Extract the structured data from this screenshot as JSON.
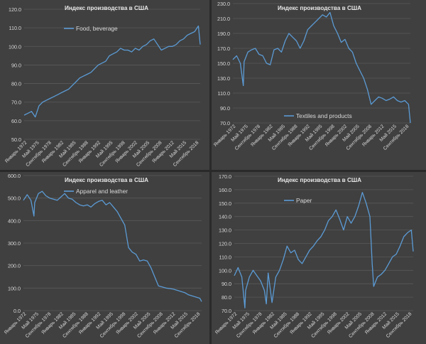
{
  "chart_data": [
    {
      "type": "line",
      "title": "Индекс производства в США",
      "legend": "Food, beverage",
      "ylim": [
        50,
        120
      ],
      "yticks": [
        "50.0",
        "60.0",
        "70.0",
        "80.0",
        "90.0",
        "100.0",
        "110.0",
        "120.0"
      ],
      "xticks": [
        "Январь 1972",
        "Май 1975",
        "Сентябрь 1978",
        "Январь 1982",
        "Май 1985",
        "Сентябрь 1988",
        "Январь 1992",
        "Май 1995",
        "Сентябрь 1998",
        "Январь 2002",
        "Май 2005",
        "Сентябрь 2008",
        "Январь 2012",
        "Май 2015",
        "Сентябрь 2018"
      ],
      "x": [
        1972,
        1973,
        1974,
        1975,
        1976,
        1977,
        1978,
        1979,
        1980,
        1981,
        1982,
        1983,
        1984,
        1985,
        1986,
        1987,
        1988,
        1989,
        1990,
        1991,
        1992,
        1993,
        1994,
        1995,
        1996,
        1997,
        1998,
        1999,
        2000,
        2001,
        2002,
        2003,
        2004,
        2005,
        2006,
        2007,
        2008,
        2009,
        2010,
        2011,
        2012,
        2013,
        2014,
        2015,
        2016,
        2017,
        2018,
        2019,
        2019.5
      ],
      "values": [
        63,
        64,
        65,
        62,
        68,
        70,
        71,
        72,
        73,
        74,
        75,
        76,
        77,
        79,
        81,
        83,
        84,
        85,
        86,
        88,
        90,
        91,
        92,
        95,
        96,
        97,
        99,
        98,
        98,
        97,
        99,
        98,
        100,
        101,
        103,
        104,
        101,
        98,
        99,
        100,
        100,
        101,
        103,
        104,
        106,
        107,
        108,
        111,
        101
      ]
    },
    {
      "type": "line",
      "title": "Индекс производства в США",
      "legend": "Textiles and products",
      "ylim": [
        70,
        230
      ],
      "yticks": [
        "70.0",
        "90.0",
        "110.0",
        "130.0",
        "150.0",
        "170.0",
        "190.0",
        "210.0",
        "230.0"
      ],
      "xticks": [
        "Январь 1972",
        "Май 1975",
        "Сентябрь 1978",
        "Январь 1982",
        "Май 1985",
        "Сентябрь 1988",
        "Январь 1992",
        "Май 1995",
        "Сентябрь 1998",
        "Январь 2002",
        "Май 2005",
        "Сентябрь 2008",
        "Январь 2012",
        "Май 2015",
        "Сентябрь 2018"
      ],
      "x": [
        1972,
        1973,
        1974,
        1974.8,
        1975,
        1976,
        1977,
        1978,
        1979,
        1980,
        1981,
        1982,
        1983,
        1984,
        1985,
        1986,
        1987,
        1988,
        1989,
        1990,
        1991,
        1992,
        1993,
        1994,
        1995,
        1996,
        1997,
        1998,
        1999,
        2000,
        2001,
        2002,
        2003,
        2004,
        2005,
        2006,
        2007,
        2008,
        2009,
        2010,
        2011,
        2012,
        2013,
        2014,
        2015,
        2016,
        2017,
        2018,
        2019,
        2019.5
      ],
      "values": [
        155,
        160,
        150,
        120,
        152,
        165,
        168,
        170,
        162,
        160,
        150,
        148,
        168,
        170,
        165,
        180,
        190,
        185,
        180,
        170,
        180,
        195,
        200,
        205,
        210,
        215,
        212,
        218,
        200,
        190,
        178,
        182,
        170,
        165,
        150,
        140,
        130,
        115,
        95,
        100,
        105,
        103,
        100,
        102,
        105,
        100,
        98,
        100,
        95,
        70
      ]
    },
    {
      "type": "line",
      "title": "Индекс производства в США",
      "legend": "Apparel and leather",
      "ylim": [
        0,
        600
      ],
      "yticks": [
        "0.0",
        "100.0",
        "200.0",
        "300.0",
        "400.0",
        "500.0",
        "600.0"
      ],
      "xticks": [
        "Январь 1972",
        "Май 1975",
        "Сентябрь 1978",
        "Январь 1982",
        "Май 1985",
        "Сентябрь 1988",
        "Январь 1992",
        "Май 1995",
        "Сентябрь 1998",
        "Январь 2002",
        "Май 2005",
        "Сентябрь 2008",
        "Январь 2012",
        "Май 2015",
        "Сентябрь 2018"
      ],
      "x": [
        1972,
        1973,
        1974,
        1974.8,
        1975,
        1976,
        1977,
        1978,
        1979,
        1980,
        1981,
        1982,
        1983,
        1984,
        1985,
        1986,
        1987,
        1988,
        1989,
        1990,
        1991,
        1992,
        1993,
        1994,
        1995,
        1996,
        1997,
        1998,
        1999,
        2000,
        2001,
        2002,
        2003,
        2004,
        2005,
        2006,
        2007,
        2008,
        2009,
        2010,
        2011,
        2012,
        2013,
        2014,
        2015,
        2016,
        2017,
        2018,
        2019,
        2019.5
      ],
      "values": [
        490,
        515,
        490,
        420,
        480,
        520,
        530,
        510,
        500,
        495,
        490,
        505,
        520,
        500,
        495,
        480,
        470,
        465,
        470,
        460,
        475,
        485,
        490,
        470,
        480,
        460,
        440,
        410,
        380,
        280,
        260,
        250,
        220,
        225,
        220,
        190,
        150,
        110,
        105,
        100,
        98,
        95,
        90,
        85,
        80,
        70,
        65,
        60,
        55,
        40
      ]
    },
    {
      "type": "line",
      "title": "Индекс производства в США",
      "legend": "Paper",
      "ylim": [
        70,
        170
      ],
      "yticks": [
        "70.0",
        "80.0",
        "90.0",
        "100.0",
        "110.0",
        "120.0",
        "130.0",
        "140.0",
        "150.0",
        "160.0",
        "170.0"
      ],
      "xticks": [
        "Январь 1972",
        "Май 1975",
        "Сентябрь 1978",
        "Январь 1982",
        "Май 1985",
        "Сентябрь 1988",
        "Январь 1992",
        "Май 1995",
        "Сентябрь 1998",
        "Январь 2002",
        "Май 2005",
        "Сентябрь 2008",
        "Январь 2012",
        "Май 2015",
        "Сентябрь 2018"
      ],
      "x": [
        1972,
        1973,
        1974,
        1974.8,
        1975,
        1976,
        1977,
        1978,
        1979,
        1980,
        1980.5,
        1981,
        1982,
        1983,
        1984,
        1985,
        1986,
        1987,
        1988,
        1989,
        1990,
        1991,
        1992,
        1993,
        1994,
        1995,
        1996,
        1997,
        1998,
        1999,
        2000,
        2001,
        2002,
        2003,
        2004,
        2005,
        2006,
        2007,
        2008,
        2008.6,
        2009,
        2010,
        2011,
        2012,
        2013,
        2014,
        2015,
        2016,
        2017,
        2018,
        2019,
        2019.5
      ],
      "values": [
        96,
        102,
        95,
        72,
        85,
        95,
        100,
        96,
        92,
        85,
        75,
        98,
        76,
        95,
        100,
        108,
        118,
        113,
        115,
        108,
        105,
        110,
        115,
        118,
        122,
        125,
        130,
        137,
        140,
        145,
        138,
        130,
        140,
        135,
        140,
        148,
        158,
        150,
        140,
        105,
        88,
        95,
        97,
        100,
        105,
        110,
        112,
        118,
        125,
        128,
        130,
        114
      ]
    }
  ]
}
